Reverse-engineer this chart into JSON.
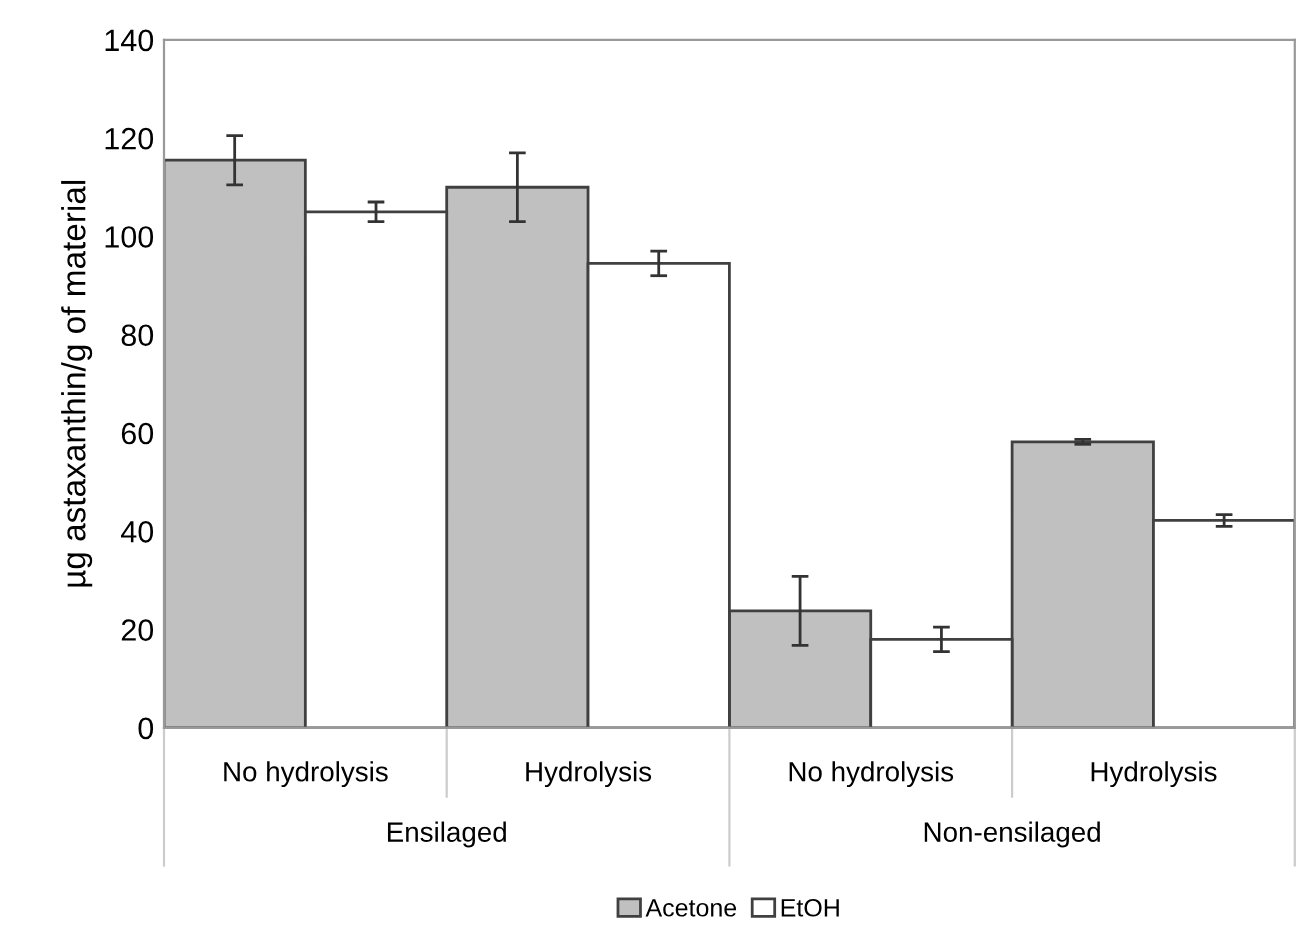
{
  "chart_data": {
    "type": "bar",
    "ylabel": "µg astaxanthin/g of material",
    "categories": [
      "No hydrolysis",
      "Hydrolysis",
      "No hydrolysis",
      "Hydrolysis"
    ],
    "series": [
      {
        "name": "Acetone",
        "color": "#c0c0c0",
        "values": [
          115.5,
          110,
          23.8,
          58.2
        ],
        "errors": [
          5,
          7,
          7,
          0.5
        ]
      },
      {
        "name": "EtOH",
        "color": "#ffffff",
        "values": [
          105,
          94.5,
          18,
          42.2
        ],
        "errors": [
          2,
          2.5,
          2.5,
          1.2
        ]
      }
    ],
    "annotations": [
      "Ensilaged",
      "Non-ensilaged"
    ],
    "ylim": [
      0,
      140
    ],
    "yticks": [
      0,
      20,
      40,
      60,
      80,
      100,
      120,
      140
    ],
    "grid": false,
    "legend": "bottom"
  }
}
